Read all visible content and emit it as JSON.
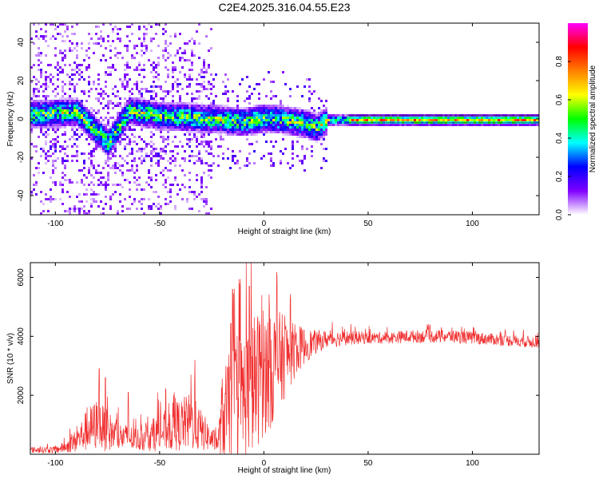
{
  "title": "C2E4.2025.316.04.55.E23",
  "chart_data": [
    {
      "type": "heatmap",
      "xlabel": "Height of straight line (km)",
      "ylabel": "Frequency (Hz)",
      "xlim": [
        -112,
        132
      ],
      "ylim": [
        -50,
        50
      ],
      "xticks": [
        -100,
        -50,
        0,
        50,
        100
      ],
      "yticks": [
        -40,
        -20,
        0,
        20,
        40
      ],
      "colorbar": {
        "label": "Normalized spectral amplitude",
        "range": [
          0,
          1
        ],
        "ticks": [
          "0.0",
          "0.2",
          "0.4",
          "0.6",
          "0.8"
        ],
        "tick_values": [
          0,
          0.2,
          0.4,
          0.6,
          0.8
        ],
        "colors": [
          "#ffffff",
          "#8000ff",
          "#0000ff",
          "#00ffff",
          "#00ff00",
          "#ffff00",
          "#ff8000",
          "#ff0000",
          "#ff00ff"
        ]
      },
      "ridge": {
        "description_points_x": [
          -110,
          -90,
          -75,
          -65,
          -50,
          -30,
          -10,
          0,
          10,
          20,
          25,
          30,
          45,
          132
        ],
        "description_points_y": [
          3,
          4,
          -12,
          5,
          2,
          1,
          -1,
          1,
          0,
          -2,
          -4,
          0,
          0,
          0
        ]
      }
    },
    {
      "type": "line",
      "xlabel": "Height of straight line (km)",
      "ylabel": "SNR (10 * v/v)",
      "xlim": [
        -112,
        132
      ],
      "ylim": [
        0,
        6500
      ],
      "xticks": [
        -100,
        -50,
        0,
        50,
        100
      ],
      "yticks": [
        2000,
        4000,
        6000
      ],
      "series": [
        {
          "color": "#f03030",
          "envelope_x": [
            -112,
            -100,
            -95,
            -90,
            -85,
            -80,
            -75,
            -70,
            -65,
            -60,
            -55,
            -50,
            -45,
            -40,
            -35,
            -30,
            -25,
            -22,
            -20,
            -15,
            -10,
            -5,
            0,
            5,
            10,
            15,
            20,
            25,
            30,
            40,
            50,
            60,
            70,
            80,
            90,
            100,
            110,
            120,
            132
          ],
          "envelope_mean": [
            150,
            150,
            250,
            450,
            800,
            1000,
            800,
            600,
            550,
            500,
            600,
            700,
            900,
            1000,
            1100,
            800,
            500,
            400,
            1200,
            1800,
            2000,
            2400,
            2800,
            3000,
            3300,
            3500,
            3700,
            3800,
            3900,
            3950,
            3950,
            3950,
            4000,
            4000,
            4000,
            3950,
            3900,
            3850,
            3800
          ],
          "envelope_amp": [
            100,
            120,
            200,
            400,
            700,
            900,
            700,
            500,
            450,
            400,
            500,
            600,
            800,
            900,
            1000,
            700,
            400,
            300,
            1500,
            2000,
            2200,
            2400,
            2200,
            2000,
            1400,
            900,
            600,
            400,
            300,
            250,
            200,
            200,
            220,
            220,
            220,
            220,
            200,
            200,
            200
          ],
          "peaks": [
            {
              "x": -79,
              "y": 2900
            },
            {
              "x": -76,
              "y": 2600
            },
            {
              "x": -65,
              "y": 2100
            },
            {
              "x": -51,
              "y": 2100
            },
            {
              "x": -47,
              "y": 2200
            },
            {
              "x": -43,
              "y": 2100
            },
            {
              "x": -35,
              "y": 2700
            },
            {
              "x": -33,
              "y": 3200
            },
            {
              "x": -15,
              "y": 5600
            },
            {
              "x": -7,
              "y": 5700
            },
            {
              "x": -6,
              "y": 6500
            },
            {
              "x": -1,
              "y": 5400
            },
            {
              "x": 3,
              "y": 4600
            },
            {
              "x": 10,
              "y": 4700
            },
            {
              "x": 18,
              "y": 4300
            }
          ]
        }
      ]
    }
  ]
}
